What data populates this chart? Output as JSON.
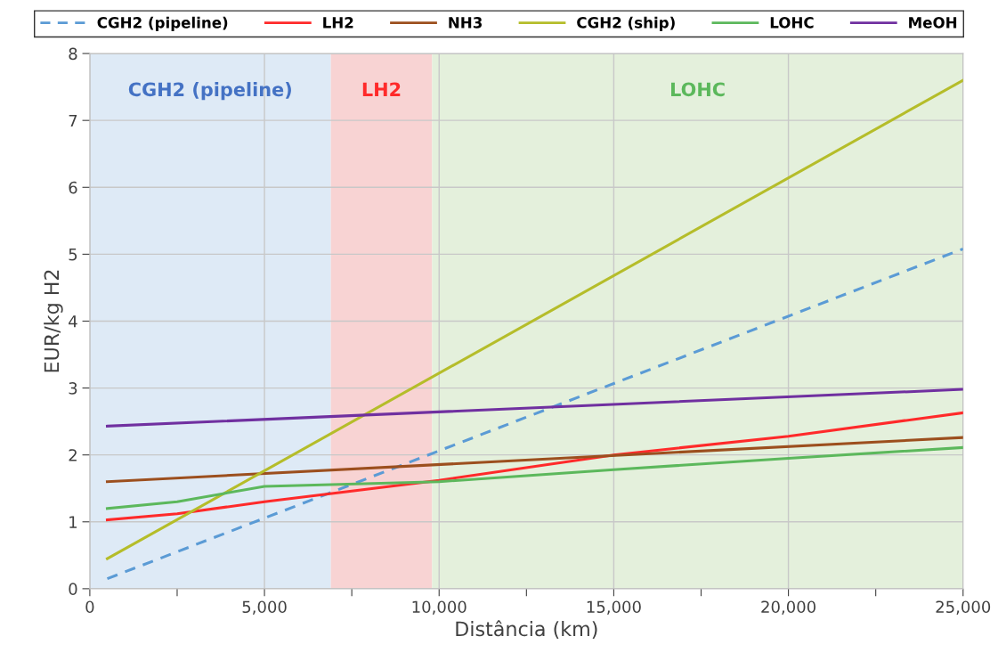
{
  "chart_data": {
    "type": "line",
    "xlabel": "Distância (km)",
    "ylabel": "EUR/kg H2",
    "xlim": [
      0,
      25000
    ],
    "ylim": [
      0,
      8
    ],
    "xticks": [
      {
        "value": 0,
        "label": "0"
      },
      {
        "value": 2500,
        "label": null
      },
      {
        "value": 5000,
        "label": "5,000"
      },
      {
        "value": 7500,
        "label": null
      },
      {
        "value": 10000,
        "label": "10,000"
      },
      {
        "value": 12500,
        "label": null
      },
      {
        "value": 15000,
        "label": "15,000"
      },
      {
        "value": 17500,
        "label": null
      },
      {
        "value": 20000,
        "label": "20,000"
      },
      {
        "value": 22500,
        "label": null
      },
      {
        "value": 25000,
        "label": "25,000"
      }
    ],
    "yticks": [
      0,
      1,
      2,
      3,
      4,
      5,
      6,
      7,
      8
    ],
    "grid": true,
    "legend": "top",
    "marker": "none",
    "bands": [
      {
        "axis": "x",
        "from": 0,
        "to": 6900,
        "label": "CGH2 (pipeline)",
        "color": "#deeaf6"
      },
      {
        "axis": "x",
        "from": 6900,
        "to": 9800,
        "label": "LH2",
        "color": "#f8d3d3"
      },
      {
        "axis": "x",
        "from": 9800,
        "to": 25000,
        "label": "LOHC",
        "color": "#e4f0dc"
      }
    ],
    "series": [
      {
        "name": "CGH2 (pipeline)",
        "color": "#5b9bd5",
        "line_style": "dashed",
        "x": [
          500,
          25000
        ],
        "values": [
          0.15,
          5.08
        ]
      },
      {
        "name": "LH2",
        "color": "#ff2a2a",
        "x": [
          500,
          2500,
          5000,
          7500,
          10000,
          15000,
          20000,
          25000
        ],
        "values": [
          1.03,
          1.12,
          1.3,
          1.46,
          1.62,
          2.0,
          2.28,
          2.63
        ]
      },
      {
        "name": "NH3",
        "color": "#9c4f1e",
        "x": [
          500,
          25000
        ],
        "values": [
          1.6,
          2.26
        ]
      },
      {
        "name": "CGH2 (ship)",
        "color": "#b5bd2a",
        "x": [
          500,
          25000
        ],
        "values": [
          0.45,
          7.6
        ]
      },
      {
        "name": "LOHC",
        "color": "#5cb85c",
        "x": [
          500,
          2500,
          5000,
          10000,
          15000,
          20000,
          25000
        ],
        "values": [
          1.2,
          1.3,
          1.53,
          1.6,
          1.78,
          1.95,
          2.11
        ]
      },
      {
        "name": "MeOH",
        "color": "#7030a0",
        "x": [
          500,
          25000
        ],
        "values": [
          2.43,
          2.98
        ]
      }
    ]
  }
}
